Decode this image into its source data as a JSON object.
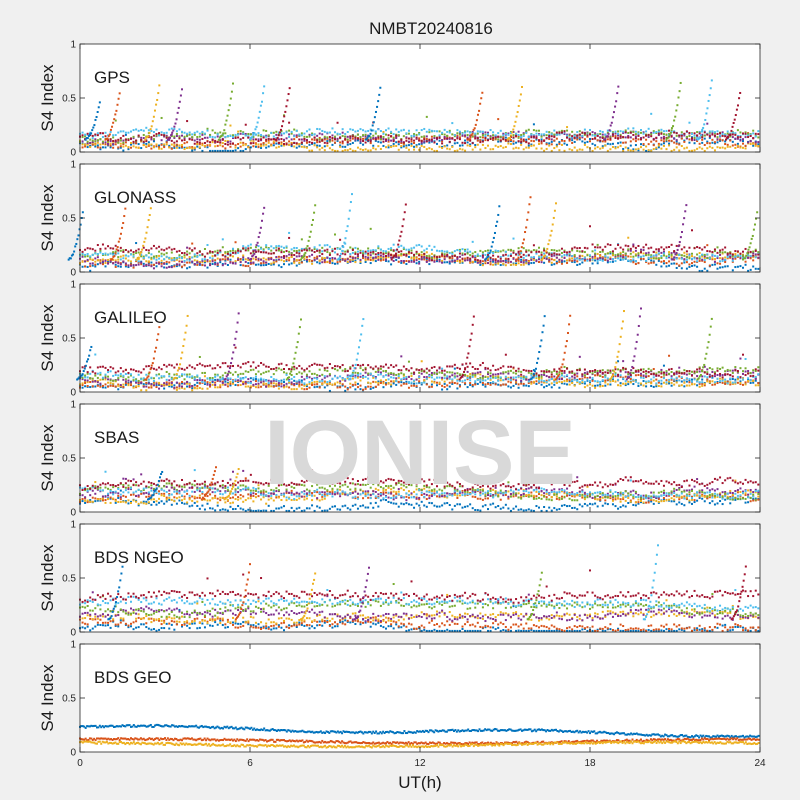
{
  "chart_data": {
    "type": "scatter",
    "title": "NMBT20240816",
    "xlabel": "UT(h)",
    "ylabel": "S4 Index",
    "xlim": [
      0,
      24
    ],
    "ylim": [
      0,
      1
    ],
    "xticks": [
      "0",
      "6",
      "12",
      "18",
      "24"
    ],
    "yticks": [
      "0",
      "0.5",
      "1"
    ],
    "watermark": "IONISE",
    "series_colors": [
      "#0072bd",
      "#d95319",
      "#edb120",
      "#7e2f8e",
      "#77ac30",
      "#4dbeee",
      "#a2142f"
    ],
    "panels": [
      {
        "label": "GPS",
        "typical_background_s4": [
          0.05,
          0.2
        ],
        "peaks": [
          {
            "ut": 0.7,
            "s4": 0.45
          },
          {
            "ut": 1.4,
            "s4": 0.55
          },
          {
            "ut": 2.8,
            "s4": 0.62
          },
          {
            "ut": 3.6,
            "s4": 0.58
          },
          {
            "ut": 5.4,
            "s4": 0.63
          },
          {
            "ut": 6.5,
            "s4": 0.6
          },
          {
            "ut": 7.4,
            "s4": 0.6
          },
          {
            "ut": 10.6,
            "s4": 0.6
          },
          {
            "ut": 14.2,
            "s4": 0.55
          },
          {
            "ut": 15.6,
            "s4": 0.6
          },
          {
            "ut": 19.0,
            "s4": 0.6
          },
          {
            "ut": 21.2,
            "s4": 0.63
          },
          {
            "ut": 22.3,
            "s4": 0.67
          },
          {
            "ut": 23.3,
            "s4": 0.55
          }
        ]
      },
      {
        "label": "GLONASS",
        "typical_background_s4": [
          0.05,
          0.25
        ],
        "peaks": [
          {
            "ut": 0.1,
            "s4": 0.55
          },
          {
            "ut": 1.6,
            "s4": 0.58
          },
          {
            "ut": 2.5,
            "s4": 0.6
          },
          {
            "ut": 6.5,
            "s4": 0.6
          },
          {
            "ut": 8.3,
            "s4": 0.62
          },
          {
            "ut": 9.6,
            "s4": 0.72
          },
          {
            "ut": 11.5,
            "s4": 0.62
          },
          {
            "ut": 14.8,
            "s4": 0.6
          },
          {
            "ut": 15.9,
            "s4": 0.7
          },
          {
            "ut": 16.8,
            "s4": 0.64
          },
          {
            "ut": 21.4,
            "s4": 0.62
          },
          {
            "ut": 23.9,
            "s4": 0.55
          }
        ]
      },
      {
        "label": "GALILEO",
        "typical_background_s4": [
          0.05,
          0.25
        ],
        "peaks": [
          {
            "ut": 0.4,
            "s4": 0.42
          },
          {
            "ut": 2.8,
            "s4": 0.6
          },
          {
            "ut": 3.8,
            "s4": 0.7
          },
          {
            "ut": 5.6,
            "s4": 0.72
          },
          {
            "ut": 7.8,
            "s4": 0.68
          },
          {
            "ut": 10.0,
            "s4": 0.68
          },
          {
            "ut": 13.9,
            "s4": 0.7
          },
          {
            "ut": 16.4,
            "s4": 0.7
          },
          {
            "ut": 17.3,
            "s4": 0.7
          },
          {
            "ut": 19.2,
            "s4": 0.74
          },
          {
            "ut": 19.8,
            "s4": 0.78
          },
          {
            "ut": 22.3,
            "s4": 0.68
          }
        ]
      },
      {
        "label": "SBAS",
        "typical_background_s4": [
          0.08,
          0.3
        ],
        "peaks": [
          {
            "ut": 2.9,
            "s4": 0.38
          },
          {
            "ut": 4.8,
            "s4": 0.42
          },
          {
            "ut": 5.6,
            "s4": 0.4
          }
        ]
      },
      {
        "label": "BDS NGEO",
        "typical_background_s4": [
          0.05,
          0.4
        ],
        "peaks": [
          {
            "ut": 1.5,
            "s4": 0.6
          },
          {
            "ut": 6.0,
            "s4": 0.62
          },
          {
            "ut": 8.3,
            "s4": 0.55
          },
          {
            "ut": 10.2,
            "s4": 0.6
          },
          {
            "ut": 16.3,
            "s4": 0.55
          },
          {
            "ut": 20.4,
            "s4": 0.8
          },
          {
            "ut": 23.5,
            "s4": 0.6
          }
        ]
      },
      {
        "label": "BDS GEO",
        "typical_background_s4": [
          0.05,
          0.28
        ],
        "peaks": []
      }
    ]
  }
}
